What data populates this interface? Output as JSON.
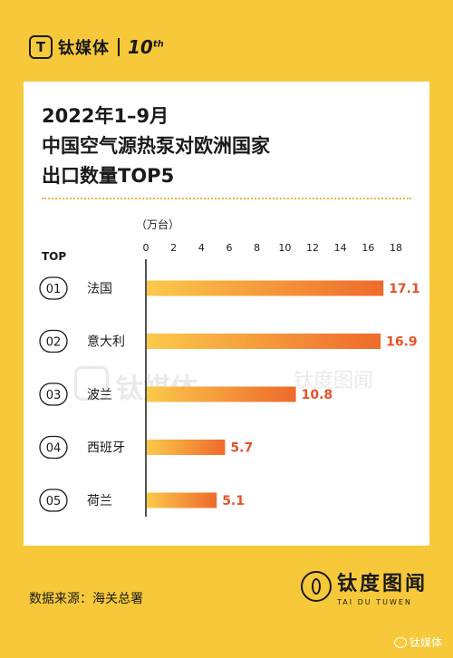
{
  "header": {
    "logo_glyph": "T",
    "brand": "钛媒体",
    "anniversary": "10",
    "anniversary_sup": "th"
  },
  "title_lines": [
    "2022年1–9月",
    "中国空气源热泵对欧洲国家",
    "出口数量TOP5"
  ],
  "source": "数据来源：海关总署",
  "stamp": {
    "cn": "钛度图闻",
    "en": "TAI DU TUWEN"
  },
  "wechat": "钛媒体",
  "colors": {
    "background": "#F7C93A",
    "bar_start": "#FBC94A",
    "bar_end": "#EE6A2C",
    "value_label": "#E5522A",
    "text": "#1a1a1a"
  },
  "chart_data": {
    "type": "bar",
    "orientation": "horizontal",
    "unit_label": "（万台）",
    "rank_header": "TOP",
    "ranks": [
      "01",
      "02",
      "03",
      "04",
      "05"
    ],
    "categories": [
      "法国",
      "意大利",
      "波兰",
      "西班牙",
      "荷兰"
    ],
    "values": [
      17.1,
      16.9,
      10.8,
      5.7,
      5.1
    ],
    "value_labels": [
      "17.1",
      "16.9",
      "10.8",
      "5.7",
      "5.1"
    ],
    "xlim": [
      0,
      18
    ],
    "xticks": [
      0,
      2,
      4,
      6,
      8,
      10,
      12,
      14,
      16,
      18
    ]
  }
}
